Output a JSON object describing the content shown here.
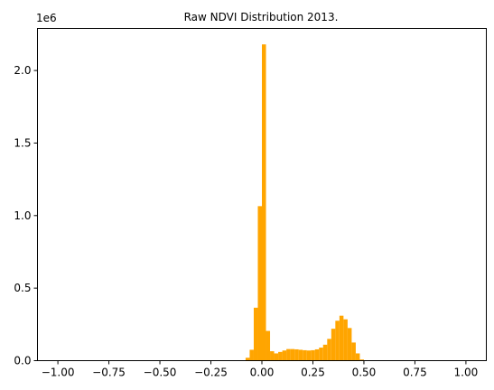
{
  "chart_data": {
    "type": "bar",
    "title": "Raw NDVI Distribution 2013.",
    "xlabel": "",
    "ylabel": "",
    "y_offset_label": "1e6",
    "xlim": [
      -1.1,
      1.1
    ],
    "ylim": [
      0,
      2290000
    ],
    "bin_width": 0.02,
    "bar_color": "#FFA500",
    "grid": false,
    "x_ticks": [
      -1.0,
      -0.75,
      -0.5,
      -0.25,
      0.0,
      0.25,
      0.5,
      0.75,
      1.0
    ],
    "x_tick_labels": [
      "−1.00",
      "−0.75",
      "−0.50",
      "−0.25",
      "0.00",
      "0.25",
      "0.50",
      "0.75",
      "1.00"
    ],
    "y_ticks": [
      0,
      500000,
      1000000,
      1500000,
      2000000
    ],
    "y_tick_labels": [
      "0.0",
      "0.5",
      "1.0",
      "1.5",
      "2.0"
    ],
    "bins": [
      {
        "x": -0.08,
        "value": 20000
      },
      {
        "x": -0.06,
        "value": 75000
      },
      {
        "x": -0.04,
        "value": 365000
      },
      {
        "x": -0.02,
        "value": 1065000
      },
      {
        "x": 0.0,
        "value": 2180000
      },
      {
        "x": 0.02,
        "value": 205000
      },
      {
        "x": 0.04,
        "value": 65000
      },
      {
        "x": 0.06,
        "value": 50000
      },
      {
        "x": 0.08,
        "value": 60000
      },
      {
        "x": 0.1,
        "value": 70000
      },
      {
        "x": 0.12,
        "value": 80000
      },
      {
        "x": 0.14,
        "value": 80000
      },
      {
        "x": 0.16,
        "value": 78000
      },
      {
        "x": 0.18,
        "value": 75000
      },
      {
        "x": 0.2,
        "value": 72000
      },
      {
        "x": 0.22,
        "value": 70000
      },
      {
        "x": 0.24,
        "value": 72000
      },
      {
        "x": 0.26,
        "value": 78000
      },
      {
        "x": 0.28,
        "value": 90000
      },
      {
        "x": 0.3,
        "value": 110000
      },
      {
        "x": 0.32,
        "value": 150000
      },
      {
        "x": 0.34,
        "value": 220000
      },
      {
        "x": 0.36,
        "value": 275000
      },
      {
        "x": 0.38,
        "value": 310000
      },
      {
        "x": 0.4,
        "value": 285000
      },
      {
        "x": 0.42,
        "value": 225000
      },
      {
        "x": 0.44,
        "value": 125000
      },
      {
        "x": 0.46,
        "value": 50000
      },
      {
        "x": 0.48,
        "value": 8000
      }
    ]
  }
}
